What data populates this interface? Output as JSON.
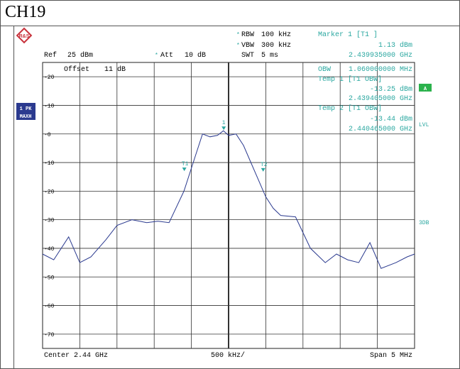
{
  "title": "CH19",
  "logo_text": "R&S",
  "header": {
    "rbw_label": "RBW",
    "rbw_value": "100 kHz",
    "vbw_label": "VBW",
    "vbw_value": "300 kHz",
    "swt_label": "SWT",
    "swt_value": "5 ms",
    "ref_label": "Ref",
    "ref_value": "25 dBm",
    "att_label": "Att",
    "att_value": "10 dB",
    "offset_label": "Offset",
    "offset_value": "11 dB",
    "marker_title": "Marker 1 [T1 ]",
    "marker_level": "1.13 dBm",
    "marker_freq": "2.439935000 GHz"
  },
  "measurements": {
    "obw_label": "OBW",
    "obw_value": "1.060000000 MHz",
    "temp1_title": "Temp 1 [T1 OBW]",
    "temp1_level": "-13.25 dBm",
    "temp1_freq": "2.439405000 GHz",
    "temp2_title": "Temp 2 [T1 OBW]",
    "temp2_level": "-13.44 dBm",
    "temp2_freq": "2.440465000 GHz"
  },
  "side_labels": {
    "trace_mode_1": "1 PK",
    "trace_mode_2": "MAXH",
    "a_label": "A",
    "lvl_label": "LVL",
    "3db_label": "3DB"
  },
  "footer": {
    "center": "Center  2.44 GHz",
    "span_div": "500 kHz/",
    "span": "Span  5 MHz"
  },
  "colors": {
    "trace": "#2b3a8f",
    "annotation": "#2aa7a0",
    "grid": "#222222",
    "label_box": "#2b3a8f",
    "a_box": "#2bb24c"
  },
  "chart_data": {
    "type": "line",
    "x_unit": "GHz",
    "y_unit": "dBm",
    "xlim": [
      2.4375,
      2.4425
    ],
    "ylim": [
      -75,
      25
    ],
    "y_ticks": [
      20,
      10,
      0,
      -10,
      -20,
      -30,
      -40,
      -50,
      -60,
      -70
    ],
    "grid": true,
    "markers": [
      {
        "label": "1",
        "x": 2.439935,
        "y": 1.13
      },
      {
        "label": "T1",
        "x": 2.439405,
        "y": -13.25
      },
      {
        "label": "T2",
        "x": 2.440465,
        "y": -13.44
      }
    ],
    "series": [
      {
        "x": [
          2.4375,
          2.43765,
          2.43785,
          2.438,
          2.43815,
          2.43835,
          2.4385,
          2.4387,
          2.4389,
          2.43905,
          2.4392,
          2.4394,
          2.43955,
          2.43965,
          2.43975,
          2.43985,
          2.43993,
          2.44,
          2.4401,
          2.4402,
          2.4403,
          2.4404,
          2.4405,
          2.4406,
          2.4407,
          2.4409,
          2.4411,
          2.4413,
          2.44145,
          2.4416,
          2.44175,
          2.4419,
          2.44205,
          2.44225,
          2.4424,
          2.4425
        ],
        "y": [
          -42,
          -44,
          -36,
          -45,
          -43,
          -37,
          -32,
          -30,
          -31,
          -30.5,
          -31,
          -20,
          -8,
          0,
          -1,
          -0.5,
          1.1,
          -0.5,
          0,
          -4,
          -10,
          -16,
          -22,
          -26,
          -28.5,
          -29,
          -40,
          -45,
          -42,
          -44,
          -45,
          -38,
          -47,
          -45,
          -43,
          -42
        ]
      }
    ]
  }
}
